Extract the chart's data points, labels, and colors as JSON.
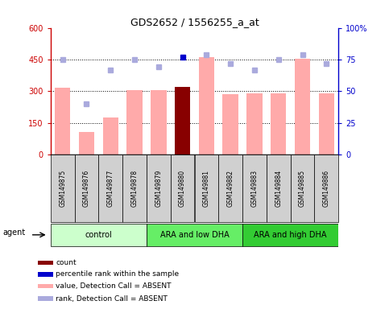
{
  "title": "GDS2652 / 1556255_a_at",
  "samples": [
    "GSM149875",
    "GSM149876",
    "GSM149877",
    "GSM149878",
    "GSM149879",
    "GSM149880",
    "GSM149881",
    "GSM149882",
    "GSM149883",
    "GSM149884",
    "GSM149885",
    "GSM149886"
  ],
  "bar_values": [
    315,
    105,
    175,
    305,
    305,
    320,
    460,
    285,
    290,
    290,
    455,
    290
  ],
  "bar_colors": [
    "#ffaaaa",
    "#ffaaaa",
    "#ffaaaa",
    "#ffaaaa",
    "#ffaaaa",
    "#880000",
    "#ffaaaa",
    "#ffaaaa",
    "#ffaaaa",
    "#ffaaaa",
    "#ffaaaa",
    "#ffaaaa"
  ],
  "rank_values": [
    75,
    40,
    67,
    75,
    69,
    77,
    79,
    72,
    67,
    75,
    79,
    72
  ],
  "rank_dot_colors": [
    "#aaaadd",
    "#aaaadd",
    "#aaaadd",
    "#aaaadd",
    "#aaaadd",
    "#0000cc",
    "#aaaadd",
    "#aaaadd",
    "#aaaadd",
    "#aaaadd",
    "#aaaadd",
    "#aaaadd"
  ],
  "ylim_left": [
    0,
    600
  ],
  "ylim_right": [
    0,
    100
  ],
  "yticks_left": [
    0,
    150,
    300,
    450,
    600
  ],
  "yticks_right": [
    0,
    25,
    50,
    75,
    100
  ],
  "ytick_labels_left": [
    "0",
    "150",
    "300",
    "450",
    "600"
  ],
  "ytick_labels_right": [
    "0",
    "25",
    "50",
    "75",
    "100%"
  ],
  "hlines": [
    150,
    300,
    450
  ],
  "groups": [
    {
      "label": "control",
      "start": 0,
      "end": 3,
      "color": "#ccffcc"
    },
    {
      "label": "ARA and low DHA",
      "start": 4,
      "end": 7,
      "color": "#66ee66"
    },
    {
      "label": "ARA and high DHA",
      "start": 8,
      "end": 11,
      "color": "#33cc33"
    }
  ],
  "legend_items": [
    {
      "label": "count",
      "color": "#880000"
    },
    {
      "label": "percentile rank within the sample",
      "color": "#0000cc"
    },
    {
      "label": "value, Detection Call = ABSENT",
      "color": "#ffaaaa"
    },
    {
      "label": "rank, Detection Call = ABSENT",
      "color": "#aaaadd"
    }
  ],
  "agent_label": "agent",
  "left_axis_color": "#cc0000",
  "right_axis_color": "#0000cc",
  "xlabel_bg": "#cccccc"
}
